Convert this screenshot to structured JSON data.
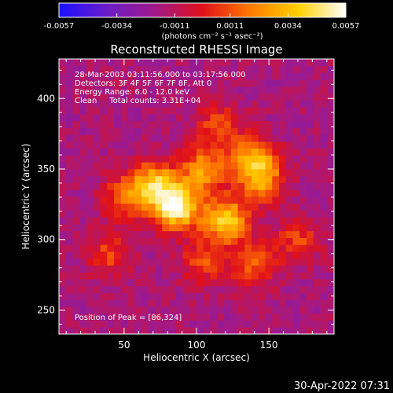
{
  "chart_data": {
    "type": "heatmap",
    "title": "Reconstructed RHESSI Image",
    "xlabel": "Heliocentric X (arcsec)",
    "ylabel": "Heliocentric Y (arcsec)",
    "xlim": [
      5,
      195
    ],
    "ylim": [
      233,
      428
    ],
    "x_ticks": [
      50,
      100,
      150
    ],
    "y_ticks": [
      250,
      300,
      350,
      400
    ],
    "colorbar": {
      "range": [
        -0.0057,
        0.0057
      ],
      "tick_values": [
        -0.0057,
        -0.0034,
        -0.0011,
        0.0011,
        0.0034,
        0.0057
      ],
      "tick_labels": [
        "-0.0057",
        "-0.0034",
        "-0.0011",
        "0.0011",
        "0.0034",
        "0.0057"
      ],
      "unit_label": "(photons cm⁻² s⁻¹ asec⁻²)",
      "colors": [
        "#1a10ff",
        "#6b1cc8",
        "#a01a8a",
        "#e0101a",
        "#ff7a00",
        "#ffd000",
        "#ffffff"
      ]
    },
    "annotations": [
      "28-Mar-2003 03:11:56.000 to 03:17:56.000",
      "Detectors: 3F 4F 5F 6F 7F 8F, Att 0",
      "Energy Range: 6.0 - 12.0 keV",
      "Clean     Total counts: 3.31E+04"
    ],
    "peak_label": "Position of Peak = [86,324]",
    "peak": [
      86,
      324
    ],
    "emission_sources": [
      {
        "x": 86,
        "y": 324,
        "value": 0.0057
      },
      {
        "x": 120,
        "y": 314,
        "value": 0.004
      },
      {
        "x": 70,
        "y": 340,
        "value": 0.0033
      },
      {
        "x": 105,
        "y": 350,
        "value": 0.0025
      },
      {
        "x": 140,
        "y": 357,
        "value": 0.003
      },
      {
        "x": 145,
        "y": 340,
        "value": 0.0018
      },
      {
        "x": 50,
        "y": 330,
        "value": 0.0012
      },
      {
        "x": 140,
        "y": 282,
        "value": 0.0013
      },
      {
        "x": 105,
        "y": 285,
        "value": 0.001
      },
      {
        "x": 115,
        "y": 380,
        "value": 0.001
      },
      {
        "x": 40,
        "y": 290,
        "value": 0.0008
      },
      {
        "x": 170,
        "y": 300,
        "value": 0.0007
      }
    ],
    "timestamp": "30-Apr-2022 07:31"
  }
}
